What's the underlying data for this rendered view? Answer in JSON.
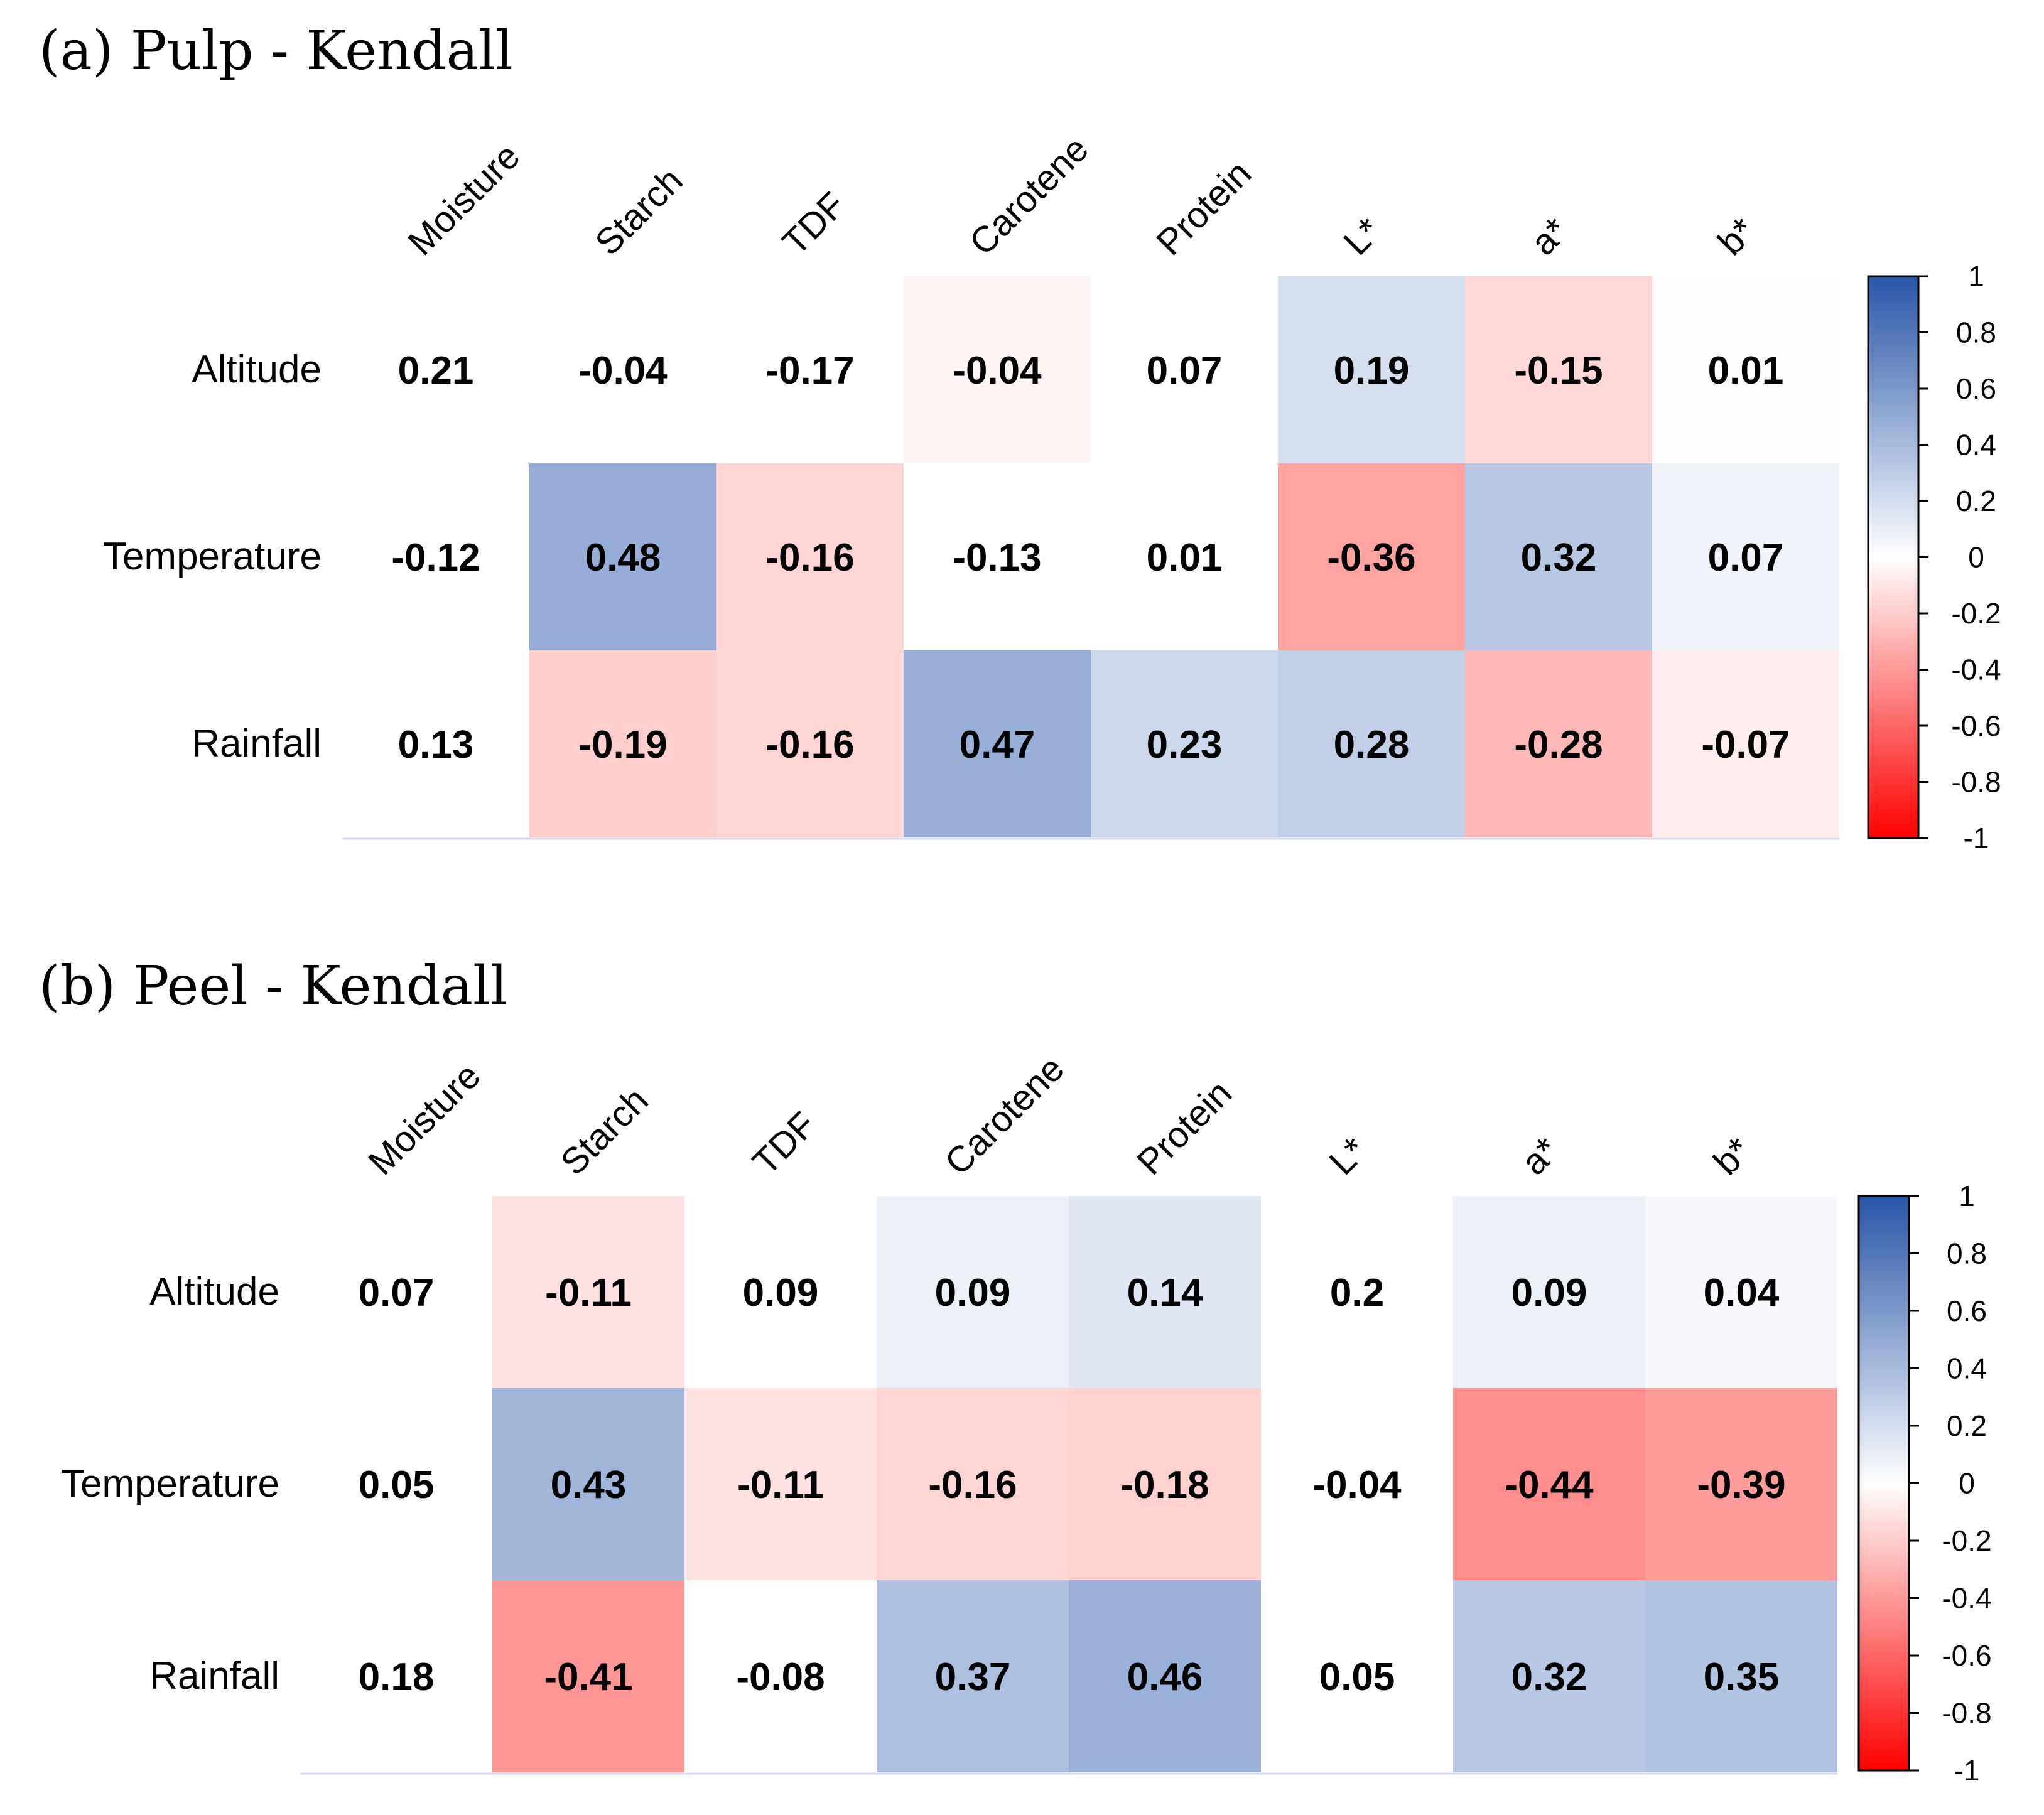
{
  "chart_data": [
    {
      "type": "heatmap",
      "title": "(a) Pulp - Kendall",
      "columns": [
        "Moisture",
        "Starch",
        "TDF",
        "Carotene",
        "Protein",
        "L*",
        "a*",
        "b*"
      ],
      "rows": [
        "Altitude",
        "Temperature",
        "Rainfall"
      ],
      "values": [
        [
          "0.21",
          "-0.04",
          "-0.17",
          "-0.04",
          "0.07",
          "0.19",
          "-0.15",
          "0.01"
        ],
        [
          "-0.12",
          "0.48",
          "-0.16",
          "-0.13",
          "0.01",
          "-0.36",
          "0.32",
          "0.07"
        ],
        [
          "0.13",
          "-0.19",
          "-0.16",
          "0.47",
          "0.23",
          "0.28",
          "-0.28",
          "-0.07"
        ]
      ],
      "shaded": [
        [
          false,
          false,
          false,
          true,
          false,
          true,
          true,
          true
        ],
        [
          false,
          true,
          true,
          false,
          false,
          true,
          true,
          true
        ],
        [
          false,
          true,
          true,
          true,
          true,
          true,
          true,
          true
        ]
      ],
      "colorbar": {
        "range": [
          -1,
          1
        ],
        "ticks": [
          "1",
          "0.8",
          "0.6",
          "0.4",
          "0.2",
          "0",
          "-0.2",
          "-0.4",
          "-0.6",
          "-0.8",
          "-1"
        ],
        "colors": {
          "negative": "#ff0000",
          "neutral": "#ffffff",
          "positive": "#2755a8"
        }
      }
    },
    {
      "type": "heatmap",
      "title": "(b) Peel - Kendall",
      "columns": [
        "Moisture",
        "Starch",
        "TDF",
        "Carotene",
        "Protein",
        "L*",
        "a*",
        "b*"
      ],
      "rows": [
        "Altitude",
        "Temperature",
        "Rainfall"
      ],
      "values": [
        [
          "0.07",
          "-0.11",
          "0.09",
          "0.09",
          "0.14",
          "0.2",
          "0.09",
          "0.04"
        ],
        [
          "0.05",
          "0.43",
          "-0.11",
          "-0.16",
          "-0.18",
          "-0.04",
          "-0.44",
          "-0.39"
        ],
        [
          "0.18",
          "-0.41",
          "-0.08",
          "0.37",
          "0.46",
          "0.05",
          "0.32",
          "0.35"
        ]
      ],
      "shaded": [
        [
          false,
          true,
          false,
          true,
          true,
          false,
          true,
          true
        ],
        [
          false,
          true,
          true,
          true,
          true,
          false,
          true,
          true
        ],
        [
          false,
          true,
          false,
          true,
          true,
          false,
          true,
          true
        ]
      ],
      "colorbar": {
        "range": [
          -1,
          1
        ],
        "ticks": [
          "1",
          "0.8",
          "0.6",
          "0.4",
          "0.2",
          "0",
          "-0.2",
          "-0.4",
          "-0.6",
          "-0.8",
          "-1"
        ],
        "colors": {
          "negative": "#ff0000",
          "neutral": "#ffffff",
          "positive": "#2755a8"
        }
      }
    }
  ]
}
